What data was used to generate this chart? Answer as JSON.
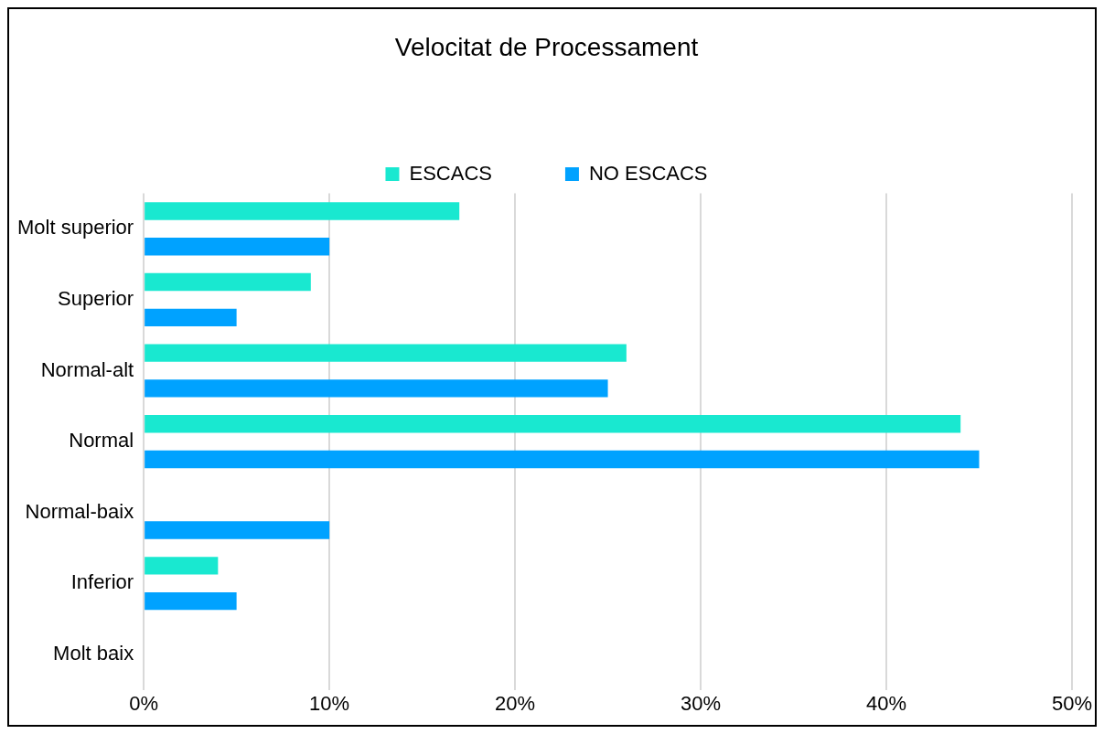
{
  "chart_data": {
    "type": "bar",
    "orientation": "horizontal",
    "title": "Velocitat de Processament",
    "categories": [
      "Molt superior",
      "Superior",
      "Normal-alt",
      "Normal",
      "Normal-baix",
      "Inferior",
      "Molt baix"
    ],
    "series": [
      {
        "name": "ESCACS",
        "color": "#19e8d0",
        "values": [
          17,
          9,
          26,
          44,
          0,
          4,
          0
        ]
      },
      {
        "name": "NO ESCACS",
        "color": "#00a2ff",
        "values": [
          10,
          5,
          25,
          45,
          10,
          5,
          0
        ]
      }
    ],
    "xlim": [
      0,
      50
    ],
    "xticks": [
      {
        "value": 0,
        "label": "0%"
      },
      {
        "value": 10,
        "label": "10%"
      },
      {
        "value": 20,
        "label": "20%"
      },
      {
        "value": 30,
        "label": "30%"
      },
      {
        "value": 40,
        "label": "40%"
      },
      {
        "value": 50,
        "label": "50%"
      }
    ],
    "grid": "x",
    "legend": "top"
  }
}
